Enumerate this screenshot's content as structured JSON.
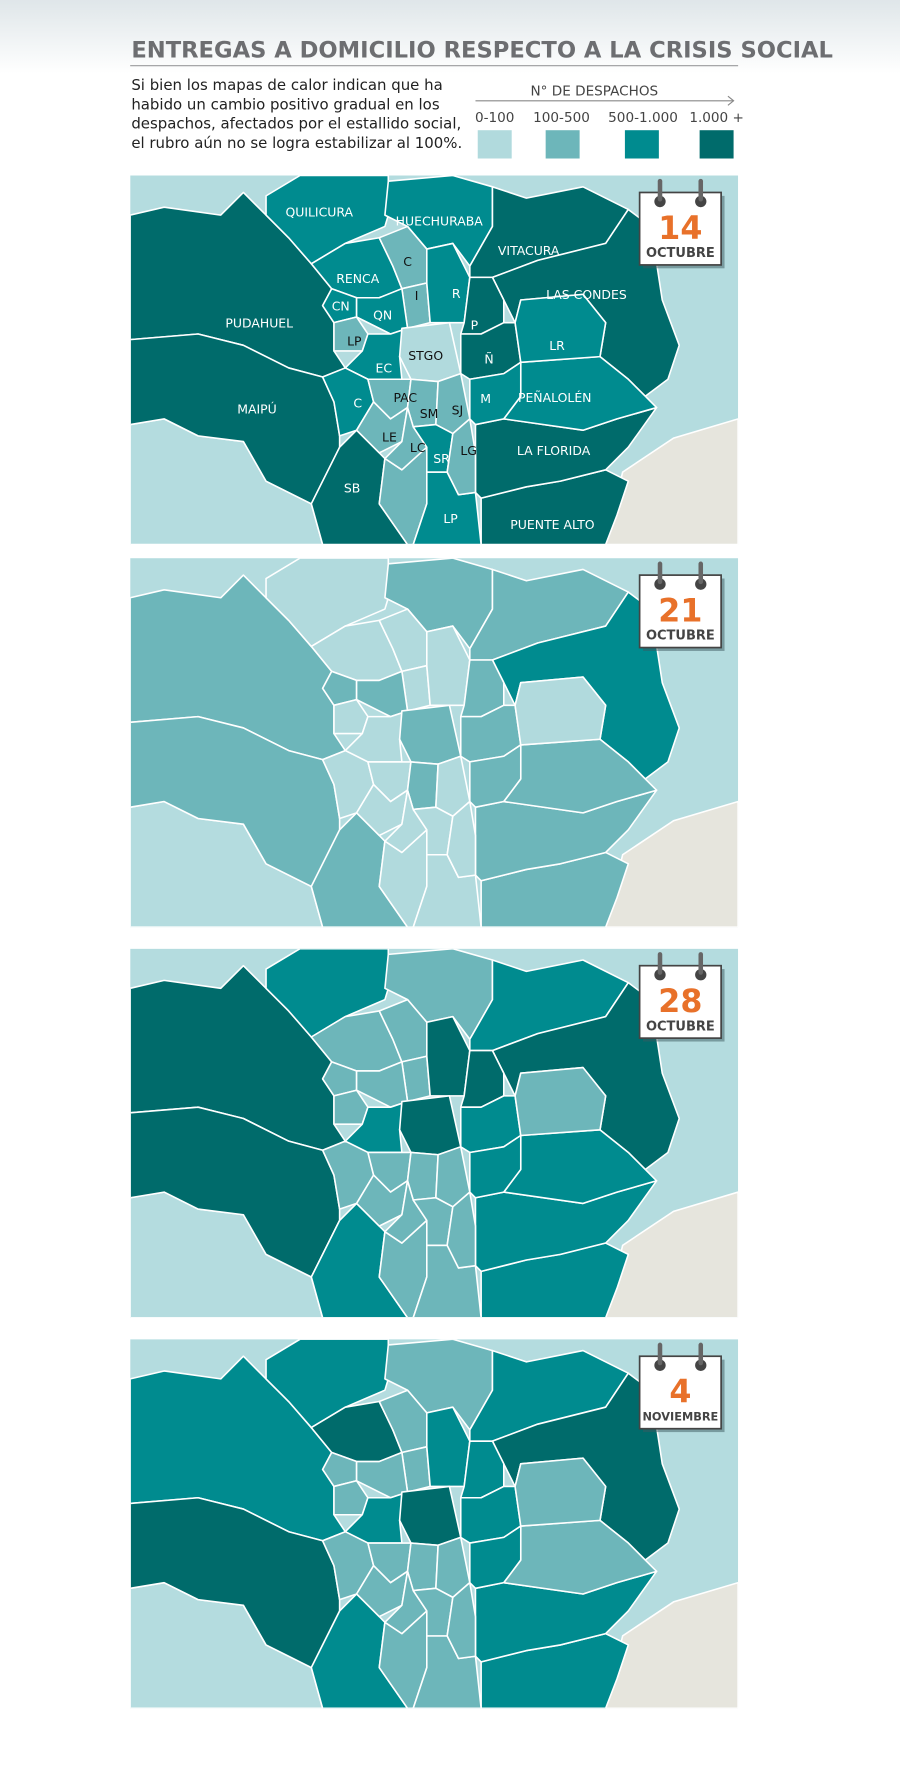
{
  "header": {
    "title": "ENTREGAS A DOMICILIO RESPECTO A LA CRISIS SOCIAL",
    "description": [
      "Si bien los mapas de calor indican que ha",
      "habido un cambio positivo gradual en los",
      "despachos, afectados por el estallido social,",
      "el rubro aún no se logra estabilizar al 100%."
    ]
  },
  "legend": {
    "title": "N° DE DESPACHOS",
    "items": [
      {
        "label": "0-100",
        "color": "#b1dadd"
      },
      {
        "label": "100-500",
        "color": "#6db6ba"
      },
      {
        "label": "500-1.000",
        "color": "#008b8f"
      },
      {
        "label": "1.000 +",
        "color": "#006b6b"
      }
    ]
  },
  "region_labels": [
    "PUDAHUEL",
    "MAIPÚ",
    "QUILICURA",
    "HUECHURABA",
    "VITACURA",
    "LAS CONDES",
    "PUENTE ALTO",
    "LA FLORIDA",
    "PEÑALOLÉN",
    "SB",
    null,
    "LP",
    "RENCA",
    "C",
    "I",
    "R",
    "CN",
    "QN",
    "LP",
    "EC",
    "STGO",
    "P",
    "Ñ",
    "LR",
    "C",
    "PAC",
    "SM",
    "SJ",
    "M",
    "LE",
    "LC",
    "SR",
    "LG"
  ],
  "maps": [
    {
      "day": "14",
      "month": "OCTUBRE",
      "labeled": true,
      "levels": [
        "1.000 +",
        "1.000 +",
        "500-1.000",
        "500-1.000",
        "1.000 +",
        "1.000 +",
        "1.000 +",
        "1.000 +",
        "500-1.000",
        "1.000 +",
        "100-500",
        "500-1.000",
        "500-1.000",
        "100-500",
        "100-500",
        "500-1.000",
        "500-1.000",
        "500-1.000",
        "100-500",
        "500-1.000",
        "0-100",
        "1.000 +",
        "1.000 +",
        "500-1.000",
        "500-1.000",
        "100-500",
        "100-500",
        "100-500",
        "500-1.000",
        "100-500",
        "100-500",
        "500-1.000",
        "100-500"
      ]
    },
    {
      "day": "21",
      "month": "OCTUBRE",
      "labeled": false,
      "levels": [
        "100-500",
        "100-500",
        "0-100",
        "100-500",
        "100-500",
        "500-1.000",
        "100-500",
        "100-500",
        "100-500",
        "100-500",
        "0-100",
        "0-100",
        "0-100",
        "0-100",
        "0-100",
        "0-100",
        "100-500",
        "100-500",
        "0-100",
        "0-100",
        "100-500",
        "100-500",
        "100-500",
        "0-100",
        "0-100",
        "0-100",
        "100-500",
        "0-100",
        "100-500",
        "0-100",
        "0-100",
        "0-100",
        "0-100"
      ]
    },
    {
      "day": "28",
      "month": "OCTUBRE",
      "labeled": false,
      "levels": [
        "1.000 +",
        "1.000 +",
        "500-1.000",
        "100-500",
        "500-1.000",
        "1.000 +",
        "500-1.000",
        "500-1.000",
        "500-1.000",
        "500-1.000",
        "100-500",
        "100-500",
        "100-500",
        "100-500",
        "100-500",
        "1.000 +",
        "100-500",
        "100-500",
        "100-500",
        "500-1.000",
        "1.000 +",
        "1.000 +",
        "500-1.000",
        "100-500",
        "100-500",
        "100-500",
        "100-500",
        "100-500",
        "500-1.000",
        "100-500",
        "100-500",
        "100-500",
        "100-500"
      ]
    },
    {
      "day": "4",
      "month": "NOVIEMBRE",
      "labeled": false,
      "levels": [
        "500-1.000",
        "1.000 +",
        "500-1.000",
        "100-500",
        "500-1.000",
        "1.000 +",
        "500-1.000",
        "500-1.000",
        "100-500",
        "500-1.000",
        "100-500",
        "100-500",
        "1.000 +",
        "100-500",
        "100-500",
        "500-1.000",
        "100-500",
        "100-500",
        "100-500",
        "500-1.000",
        "1.000 +",
        "500-1.000",
        "500-1.000",
        "100-500",
        "100-500",
        "100-500",
        "100-500",
        "100-500",
        "500-1.000",
        "100-500",
        "100-500",
        "100-500",
        "100-500"
      ]
    }
  ]
}
